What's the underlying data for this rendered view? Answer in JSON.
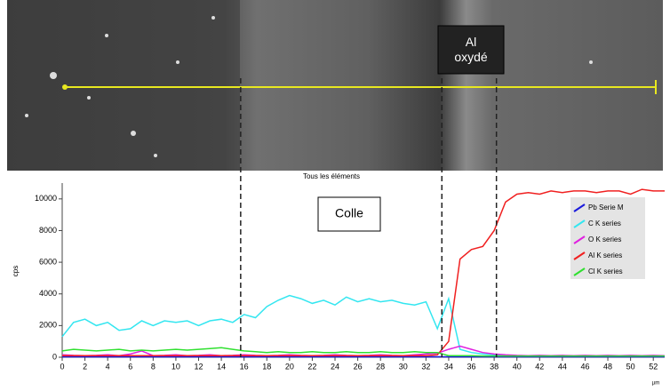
{
  "chart_data": {
    "type": "line",
    "title": "Tous les éléments",
    "y_label": "cps",
    "x_label": "µm",
    "annotations": [
      "Colle",
      "Al oxydé"
    ],
    "markers_x": [
      15.7,
      33.4,
      38.2
    ],
    "xlim": [
      0,
      53
    ],
    "ylim": [
      0,
      11000
    ],
    "xticks": [
      0,
      2,
      4,
      6,
      8,
      10,
      12,
      14,
      16,
      18,
      20,
      22,
      24,
      26,
      28,
      30,
      32,
      34,
      36,
      38,
      40,
      42,
      44,
      46,
      48,
      50,
      52
    ],
    "yticks": [
      0,
      2000,
      4000,
      6000,
      8000,
      10000
    ],
    "legend": "upper right",
    "x": [
      0,
      1,
      2,
      3,
      4,
      5,
      6,
      7,
      8,
      9,
      10,
      11,
      12,
      13,
      14,
      15,
      16,
      17,
      18,
      19,
      20,
      21,
      22,
      23,
      24,
      25,
      26,
      27,
      28,
      29,
      30,
      31,
      32,
      33,
      34,
      35,
      36,
      37,
      38,
      39,
      40,
      41,
      42,
      43,
      44,
      45,
      46,
      47,
      48,
      49,
      50,
      51,
      52,
      53
    ],
    "series": [
      {
        "name": "Pb Serie M",
        "color": "#1a1adc",
        "values": [
          30,
          30,
          30,
          30,
          30,
          30,
          30,
          30,
          30,
          30,
          30,
          30,
          30,
          30,
          30,
          30,
          30,
          30,
          30,
          30,
          30,
          30,
          30,
          30,
          30,
          30,
          30,
          30,
          30,
          30,
          30,
          30,
          30,
          30,
          30,
          30,
          30,
          30,
          30,
          30,
          30,
          30,
          30,
          30,
          30,
          30,
          30,
          30,
          30,
          30,
          30,
          30,
          30,
          30
        ]
      },
      {
        "name": "C K series",
        "color": "#33e6f0",
        "values": [
          1300,
          2200,
          2400,
          2000,
          2200,
          1700,
          1800,
          2300,
          2000,
          2300,
          2200,
          2300,
          2000,
          2300,
          2400,
          2200,
          2700,
          2500,
          3200,
          3600,
          3900,
          3700,
          3400,
          3600,
          3300,
          3800,
          3500,
          3700,
          3500,
          3600,
          3400,
          3300,
          3500,
          1800,
          3700,
          500,
          300,
          200,
          150,
          100,
          100,
          100,
          100,
          100,
          100,
          100,
          100,
          100,
          100,
          100,
          100,
          100,
          100,
          100
        ]
      },
      {
        "name": "O K series",
        "color": "#e020e0",
        "values": [
          150,
          120,
          100,
          120,
          150,
          100,
          200,
          400,
          100,
          120,
          150,
          100,
          120,
          150,
          100,
          120,
          150,
          120,
          100,
          120,
          150,
          120,
          100,
          120,
          150,
          120,
          100,
          120,
          150,
          120,
          100,
          150,
          200,
          250,
          500,
          700,
          500,
          300,
          200,
          150,
          120,
          100,
          120,
          100,
          120,
          100,
          120,
          100,
          120,
          100,
          120,
          100,
          120,
          100
        ]
      },
      {
        "name": "Al K series",
        "color": "#f02020",
        "values": [
          100,
          100,
          100,
          100,
          100,
          100,
          100,
          100,
          100,
          100,
          100,
          100,
          100,
          100,
          100,
          100,
          100,
          100,
          100,
          100,
          100,
          100,
          100,
          100,
          100,
          100,
          100,
          100,
          100,
          100,
          100,
          100,
          100,
          150,
          1000,
          6200,
          6800,
          7000,
          8000,
          9800,
          10300,
          10400,
          10300,
          10500,
          10400,
          10500,
          10500,
          10400,
          10500,
          10500,
          10300,
          10600,
          10500,
          10500
        ]
      },
      {
        "name": "Cl K series",
        "color": "#30e030",
        "values": [
          400,
          500,
          450,
          400,
          450,
          500,
          400,
          450,
          400,
          450,
          500,
          450,
          500,
          550,
          600,
          500,
          400,
          350,
          300,
          350,
          300,
          300,
          350,
          300,
          300,
          350,
          300,
          300,
          350,
          300,
          300,
          350,
          300,
          300,
          100,
          100,
          100,
          80,
          80,
          80,
          80,
          80,
          80,
          80,
          80,
          80,
          80,
          80,
          80,
          80,
          80,
          80,
          80,
          80
        ]
      }
    ]
  }
}
